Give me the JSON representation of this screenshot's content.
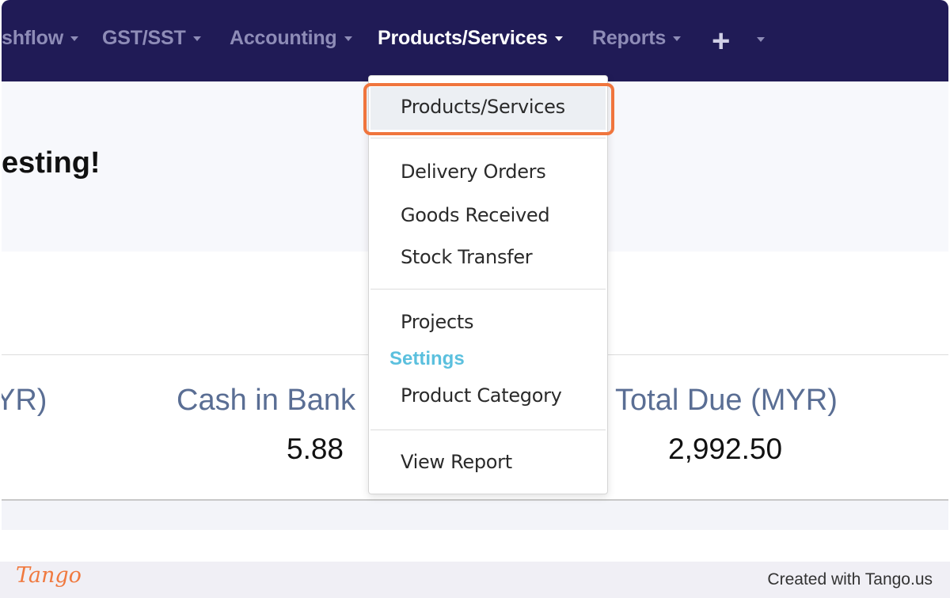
{
  "nav": {
    "items": [
      {
        "label": "shflow"
      },
      {
        "label": "GST/SST"
      },
      {
        "label": "Accounting"
      },
      {
        "label": "Products/Services",
        "active": true
      },
      {
        "label": "Reports"
      }
    ],
    "add_icon": "plus-icon"
  },
  "page": {
    "welcome_text": "esting!"
  },
  "stats": [
    {
      "label": "YR)",
      "value": ""
    },
    {
      "label": "Cash in Bank",
      "value": "5.88"
    },
    {
      "label": "Total Due (MYR)",
      "value": "2,992.50"
    }
  ],
  "dropdown": {
    "items": [
      {
        "label": "Products/Services"
      },
      {
        "label": "Delivery Orders"
      },
      {
        "label": "Goods Received"
      },
      {
        "label": "Stock Transfer"
      },
      {
        "label": "Projects"
      },
      {
        "label": "Product Category"
      },
      {
        "label": "View Report"
      }
    ],
    "settings_header": "Settings"
  },
  "footer": {
    "logo_text": "Tango",
    "created_with": "Created with Tango.us"
  },
  "colors": {
    "nav_bg": "#201b56",
    "highlight": "#f0753d",
    "settings_header": "#5bc0de",
    "stat_label": "#5a6e94"
  }
}
